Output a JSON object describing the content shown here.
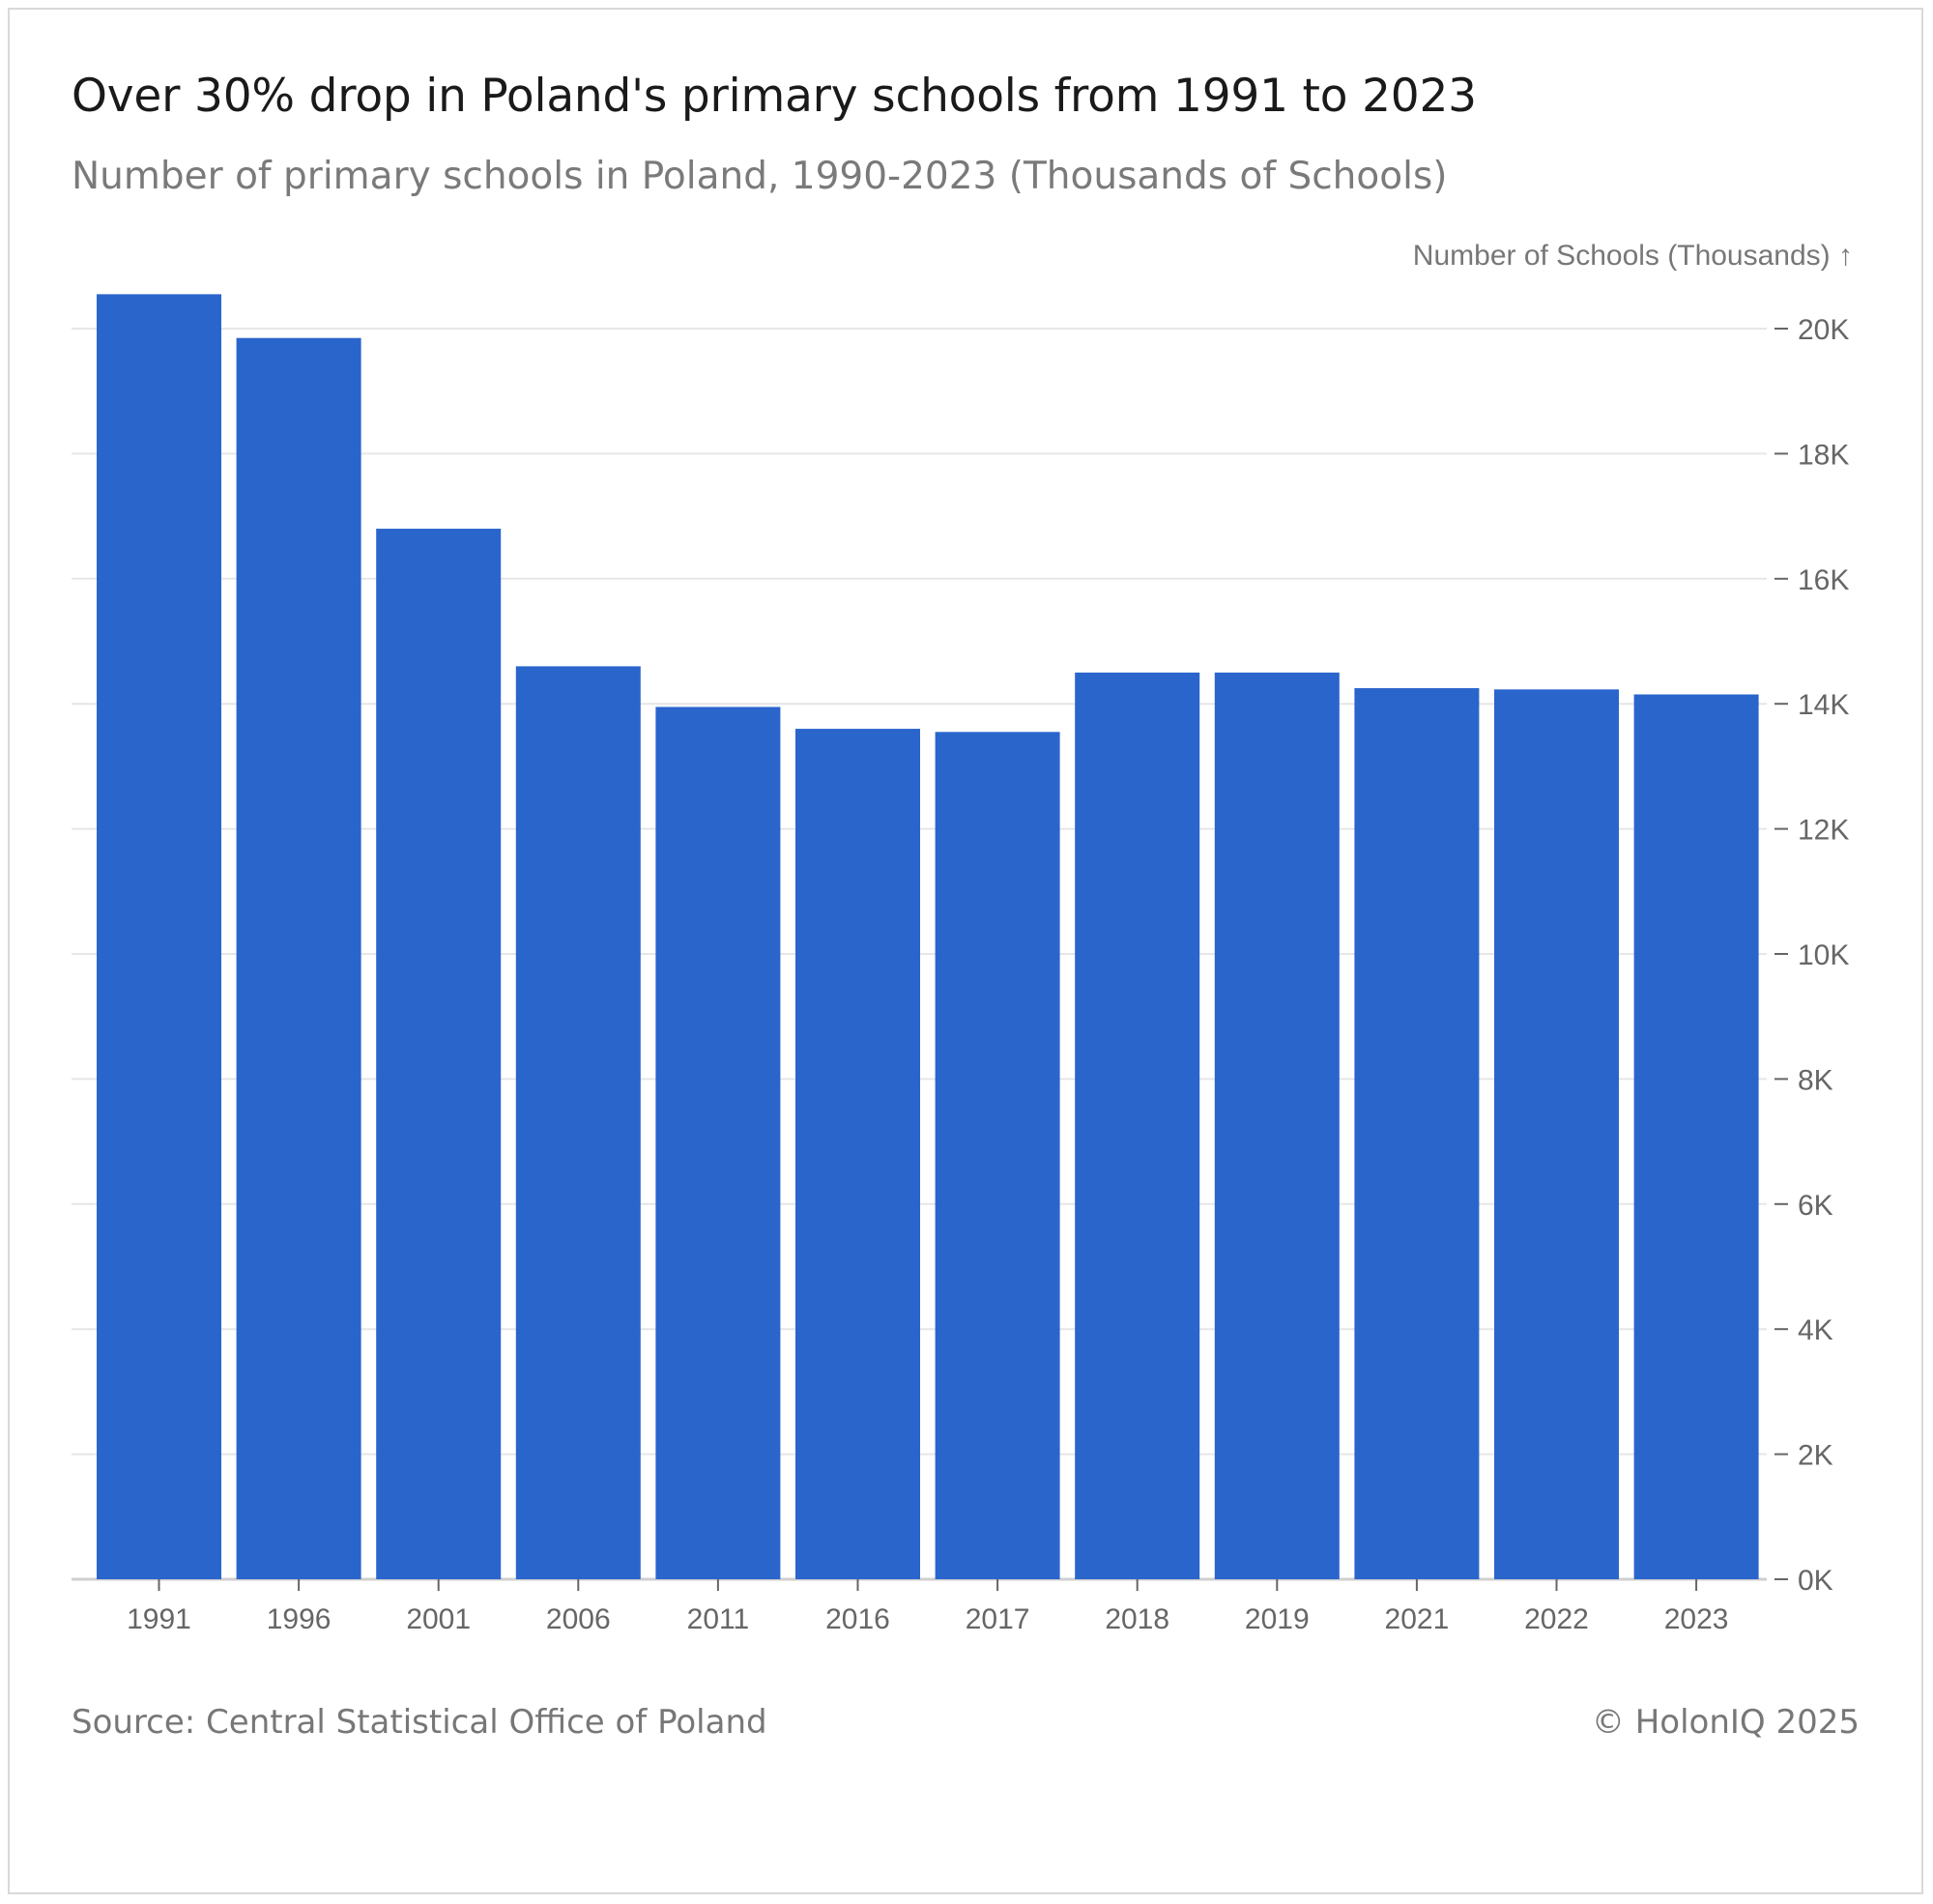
{
  "header": {
    "title": "Over 30% drop in Poland's primary schools from 1991 to 2023",
    "subtitle": "Number of primary schools in Poland, 1990-2023 (Thousands of Schools)"
  },
  "footer": {
    "source": "Source: Central Statistical Office of Poland",
    "copyright": "© HolonIQ 2025"
  },
  "chart_data": {
    "type": "bar",
    "title": "Over 30% drop in Poland's primary schools from 1991 to 2023",
    "subtitle": "Number of primary schools in Poland, 1990-2023 (Thousands of Schools)",
    "xlabel": "",
    "ylabel": "Number of Schools (Thousands) ↑",
    "categories": [
      "1991",
      "1996",
      "2001",
      "2006",
      "2011",
      "2016",
      "2017",
      "2018",
      "2019",
      "2021",
      "2022",
      "2023"
    ],
    "values": [
      20550,
      19850,
      16800,
      14600,
      13950,
      13600,
      13550,
      14500,
      14500,
      14250,
      14230,
      14150
    ],
    "ylim": [
      0,
      20000
    ],
    "yticks": [
      0,
      2000,
      4000,
      6000,
      8000,
      10000,
      12000,
      14000,
      16000,
      18000,
      20000
    ],
    "ytick_labels": [
      "0K",
      "2K",
      "4K",
      "6K",
      "8K",
      "10K",
      "12K",
      "14K",
      "16K",
      "18K",
      "20K"
    ],
    "y_axis_position": "right",
    "grid": true,
    "bar_color": "#2a65cc"
  }
}
